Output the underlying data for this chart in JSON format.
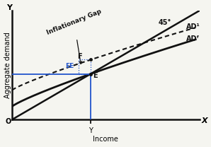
{
  "xlabel": "Income",
  "ylabel": "Aggregate demand",
  "x_label_axis": "X",
  "y_label_axis": "Y",
  "origin_label": "O",
  "line_45_label": "45°",
  "ad1_label": "AD¹",
  "adf_label": "ADᶠ",
  "point_F_label": "F",
  "point_E_label": "E",
  "point_EE_label": "EE",
  "inflationary_gap_label": "Inflationary Gap",
  "income_tick": "Y",
  "xlim": [
    0,
    10
  ],
  "ylim": [
    0,
    10
  ],
  "x_Y": 4.2,
  "background_color": "#f5f5f0",
  "line_color": "#111111",
  "blue_color": "#2255cc"
}
